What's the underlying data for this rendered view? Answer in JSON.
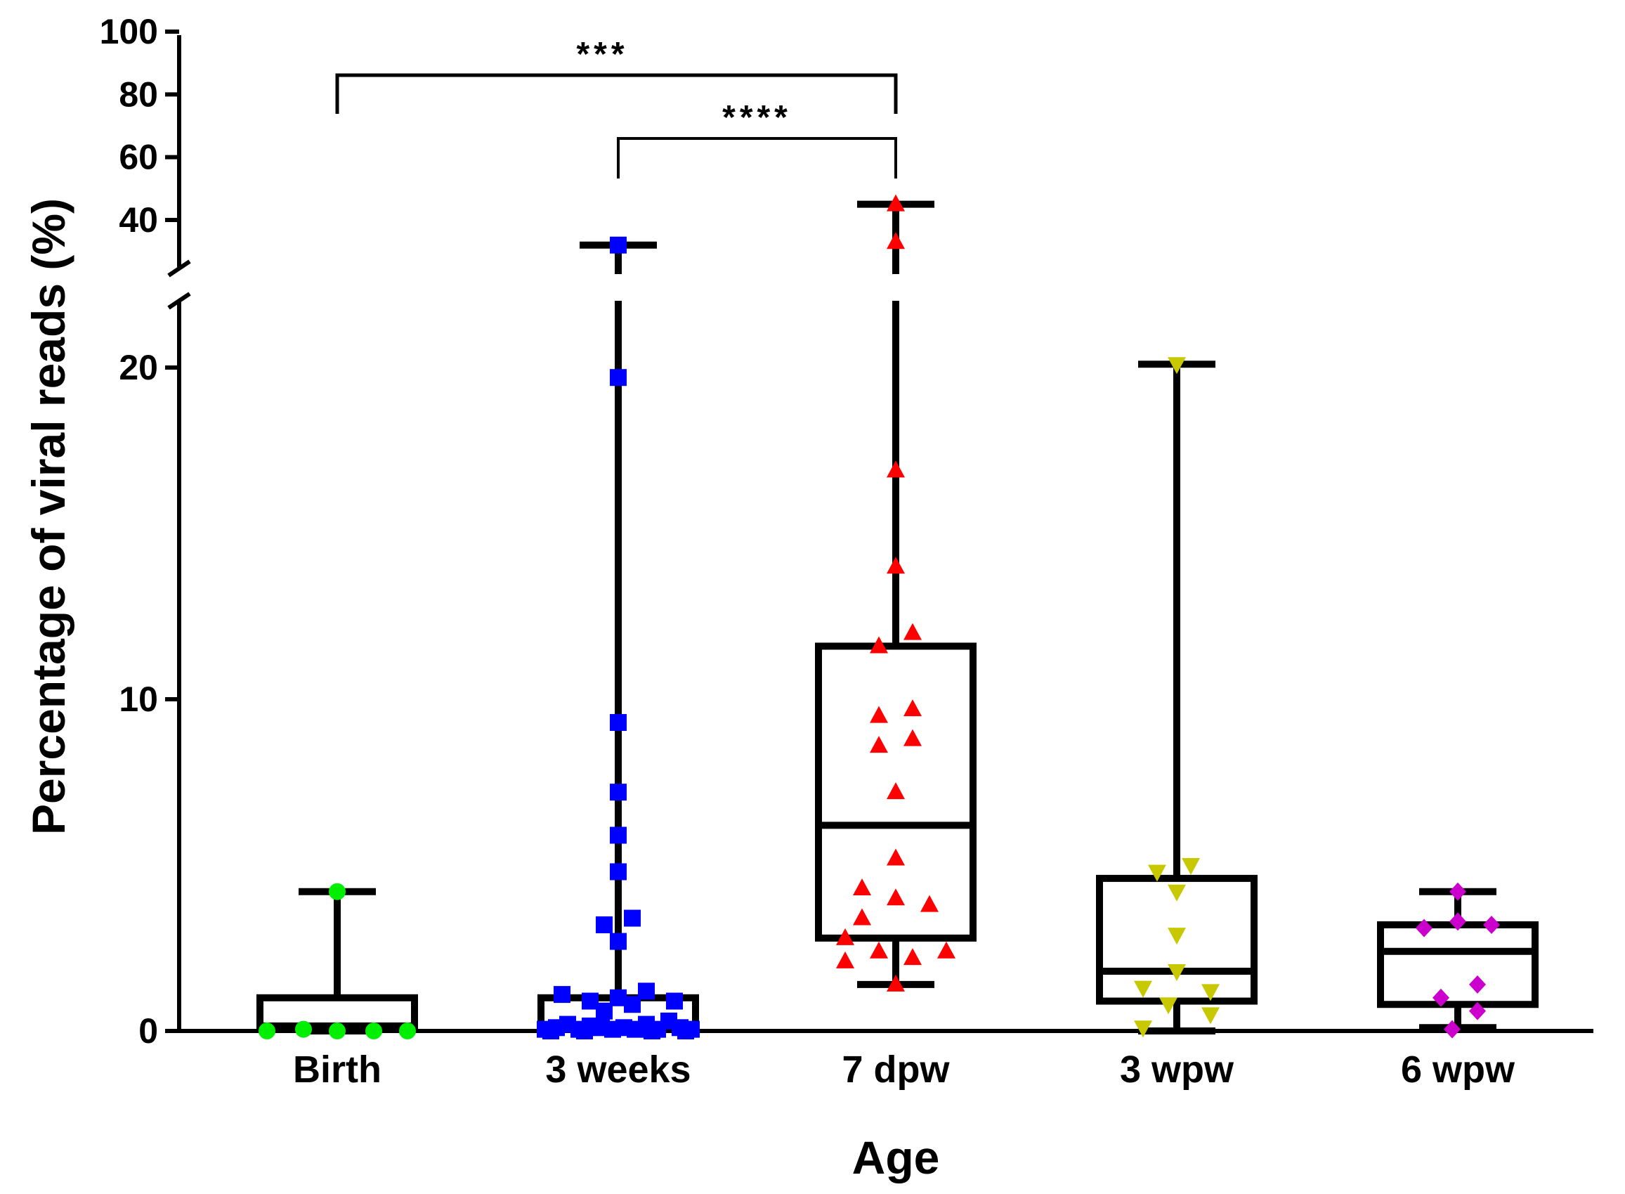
{
  "chart_data": {
    "type": "box",
    "xlabel": "Age",
    "ylabel": "Percentage of viral reads (%)",
    "y_axis": {
      "broken": true,
      "lower_range": [
        0,
        22
      ],
      "upper_range": [
        30,
        100
      ],
      "lower_ticks": [
        "0",
        "10",
        "20"
      ],
      "upper_ticks": [
        "40",
        "60",
        "80",
        "100"
      ]
    },
    "categories": [
      "Birth",
      "3 weeks",
      "7 dpw",
      "3 wpw",
      "6 wpw"
    ],
    "series": [
      {
        "name": "Birth",
        "color": "#00ee00",
        "marker": "circle",
        "box": {
          "min": 0,
          "q1": 0.1,
          "median": 0.15,
          "q3": 1.0,
          "max": 4.2
        },
        "points": [
          [
            -0.25,
            0
          ],
          [
            -0.12,
            0.05
          ],
          [
            0,
            4.2
          ],
          [
            0,
            0
          ],
          [
            0.13,
            0
          ],
          [
            0.25,
            0
          ]
        ]
      },
      {
        "name": "3 weeks",
        "color": "#0000ff",
        "marker": "square",
        "box": {
          "min": 0,
          "q1": 0.05,
          "median": 0.15,
          "q3": 1.0,
          "max": 32
        },
        "points": [
          [
            0,
            32
          ],
          [
            0,
            19.7
          ],
          [
            0,
            9.3
          ],
          [
            0,
            7.2
          ],
          [
            0,
            5.9
          ],
          [
            0,
            4.8
          ],
          [
            -0.05,
            3.2
          ],
          [
            0.05,
            3.4
          ],
          [
            0,
            2.7
          ],
          [
            -0.2,
            1.1
          ],
          [
            -0.1,
            0.9
          ],
          [
            0,
            1.0
          ],
          [
            0.1,
            1.2
          ],
          [
            0.2,
            0.9
          ],
          [
            -0.05,
            0.6
          ],
          [
            0.05,
            0.8
          ],
          [
            -0.26,
            0.05
          ],
          [
            -0.22,
            0.1
          ],
          [
            -0.18,
            0.2
          ],
          [
            -0.14,
            0.05
          ],
          [
            -0.1,
            0.15
          ],
          [
            -0.06,
            0.1
          ],
          [
            -0.02,
            0.05
          ],
          [
            0.02,
            0.1
          ],
          [
            0.06,
            0.05
          ],
          [
            0.1,
            0.2
          ],
          [
            0.14,
            0.05
          ],
          [
            0.18,
            0.3
          ],
          [
            0.22,
            0.1
          ],
          [
            0.26,
            0.05
          ],
          [
            -0.12,
            0.0
          ],
          [
            0.12,
            0.0
          ],
          [
            0.24,
            0.0
          ],
          [
            -0.24,
            0.0
          ]
        ]
      },
      {
        "name": "7 dpw",
        "color": "#ff0000",
        "marker": "triangle-up",
        "box": {
          "min": 1.4,
          "q1": 2.8,
          "median": 6.2,
          "q3": 11.6,
          "max": 45
        },
        "points": [
          [
            0,
            45
          ],
          [
            0,
            33
          ],
          [
            0,
            16.9
          ],
          [
            0,
            14.0
          ],
          [
            -0.06,
            11.6
          ],
          [
            0.06,
            12.0
          ],
          [
            -0.06,
            9.5
          ],
          [
            0.06,
            9.7
          ],
          [
            -0.06,
            8.6
          ],
          [
            0.06,
            8.8
          ],
          [
            0,
            7.2
          ],
          [
            0,
            5.2
          ],
          [
            -0.12,
            4.3
          ],
          [
            0,
            4.0
          ],
          [
            0.12,
            3.8
          ],
          [
            -0.12,
            3.4
          ],
          [
            -0.18,
            2.8
          ],
          [
            -0.18,
            2.1
          ],
          [
            -0.06,
            2.4
          ],
          [
            0.06,
            2.2
          ],
          [
            0.18,
            2.4
          ],
          [
            0,
            1.4
          ]
        ]
      },
      {
        "name": "3 wpw",
        "color": "#c8c800",
        "marker": "triangle-down",
        "box": {
          "min": 0,
          "q1": 0.9,
          "median": 1.8,
          "q3": 4.6,
          "max": 20.1
        },
        "points": [
          [
            0,
            20.1
          ],
          [
            -0.07,
            4.8
          ],
          [
            0.05,
            5.0
          ],
          [
            0,
            4.2
          ],
          [
            0,
            2.9
          ],
          [
            -0.12,
            1.3
          ],
          [
            0,
            1.8
          ],
          [
            0.12,
            1.2
          ],
          [
            -0.03,
            0.8
          ],
          [
            0.12,
            0.5
          ],
          [
            -0.12,
            0.1
          ]
        ]
      },
      {
        "name": "6 wpw",
        "color": "#cc00cc",
        "marker": "diamond",
        "box": {
          "min": 0.1,
          "q1": 0.8,
          "median": 2.4,
          "q3": 3.2,
          "max": 4.2
        },
        "points": [
          [
            0,
            4.2
          ],
          [
            -0.12,
            3.1
          ],
          [
            0,
            3.3
          ],
          [
            0.12,
            3.2
          ],
          [
            0.07,
            1.4
          ],
          [
            -0.06,
            1.0
          ],
          [
            0.07,
            0.6
          ],
          [
            -0.02,
            0.05
          ]
        ]
      }
    ],
    "significance": [
      {
        "from": "Birth",
        "to": "7 dpw",
        "label": "***"
      },
      {
        "from": "3 weeks",
        "to": "7 dpw",
        "label": "****"
      }
    ]
  }
}
